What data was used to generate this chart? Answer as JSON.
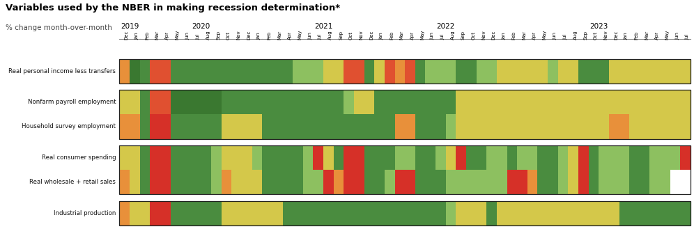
{
  "title": "Variables used by the NBER in making recession determination*",
  "subtitle": "% change month-over-month",
  "row_labels": [
    "Real personal income less transfers",
    "Nonfarm payroll employment",
    "Household survey employment",
    "Real consumer spending",
    "Real wholesale + retail sales",
    "Industrial production"
  ],
  "group_defs": [
    [
      0
    ],
    [
      1,
      2
    ],
    [
      3,
      4
    ],
    [
      5
    ]
  ],
  "year_spans": [
    {
      "year": "2019",
      "start": 0,
      "end": 2
    },
    {
      "year": "2020",
      "start": 2,
      "end": 14
    },
    {
      "year": "2021",
      "start": 14,
      "end": 26
    },
    {
      "year": "2022",
      "start": 26,
      "end": 38
    },
    {
      "year": "2023",
      "start": 38,
      "end": 56
    }
  ],
  "months": [
    "Dec",
    "Jan",
    "Feb",
    "Mar",
    "Apr",
    "May",
    "Jun",
    "Jul",
    "Aug",
    "Sep",
    "Oct",
    "Nov",
    "Dec",
    "Jan",
    "Feb",
    "Mar",
    "Apr",
    "May",
    "Jun",
    "Jul",
    "Aug",
    "Sep",
    "Oct",
    "Nov",
    "Dec",
    "Jan",
    "Feb",
    "Mar",
    "Apr",
    "May",
    "Jun",
    "Jul",
    "Aug",
    "Sep",
    "Oct",
    "Nov",
    "Dec",
    "Jan",
    "Feb",
    "Mar",
    "Apr",
    "May",
    "Jun",
    "Jul",
    "Aug",
    "Sep",
    "Oct",
    "Nov",
    "Dec",
    "Jan",
    "Feb",
    "Mar",
    "Apr",
    "May",
    "Jun",
    "Jul"
  ],
  "n_cols": 56,
  "data": {
    "Real personal income less transfers": [
      -2,
      3,
      2,
      -3,
      -3,
      2,
      2,
      2,
      2,
      2,
      2,
      2,
      2,
      2,
      2,
      2,
      2,
      1,
      1,
      1,
      -1,
      -1,
      -3,
      -3,
      2,
      -1,
      -3,
      -2,
      -3,
      2,
      1,
      1,
      1,
      2,
      2,
      1,
      1,
      -1,
      -1,
      -1,
      -1,
      -1,
      1,
      -1,
      -1,
      2,
      2,
      2,
      -1,
      -1,
      -1,
      -1,
      -1,
      -1,
      -1,
      -1
    ],
    "Nonfarm payroll employment": [
      -1,
      -1,
      2,
      -3,
      -3,
      3,
      3,
      3,
      3,
      3,
      2,
      2,
      2,
      2,
      2,
      2,
      2,
      2,
      2,
      2,
      2,
      2,
      1,
      -1,
      -1,
      2,
      2,
      2,
      2,
      2,
      2,
      2,
      2,
      -1,
      -1,
      -1,
      -1,
      -1,
      -1,
      -1,
      -1,
      -1,
      -1,
      -1,
      -1,
      -1,
      -1,
      -1,
      -1,
      -1,
      -1,
      -1,
      -1,
      -1,
      -1,
      -1
    ],
    "Household survey employment": [
      -2,
      -2,
      2,
      -4,
      -4,
      2,
      2,
      2,
      2,
      2,
      -1,
      -1,
      -1,
      -1,
      2,
      2,
      2,
      2,
      2,
      2,
      2,
      2,
      2,
      2,
      2,
      2,
      2,
      -2,
      -2,
      2,
      2,
      2,
      1,
      -1,
      -1,
      -1,
      -1,
      -1,
      -1,
      -1,
      -1,
      -1,
      -1,
      -1,
      -1,
      -1,
      -1,
      -1,
      -2,
      -2,
      -1,
      -1,
      -1,
      -1,
      -1,
      -1
    ],
    "Real consumer spending": [
      -1,
      -1,
      2,
      -4,
      -4,
      2,
      2,
      2,
      2,
      1,
      -1,
      -1,
      -1,
      1,
      2,
      2,
      2,
      2,
      1,
      -4,
      -1,
      2,
      -4,
      -4,
      2,
      2,
      2,
      1,
      1,
      2,
      2,
      1,
      -1,
      -4,
      2,
      2,
      1,
      1,
      2,
      1,
      1,
      2,
      2,
      1,
      -1,
      -4,
      2,
      1,
      1,
      1,
      2,
      2,
      1,
      1,
      1,
      -4
    ],
    "Real wholesale + retail sales": [
      -2,
      -1,
      2,
      -4,
      -4,
      2,
      2,
      2,
      2,
      1,
      -2,
      -1,
      -1,
      -1,
      2,
      2,
      2,
      2,
      1,
      1,
      -4,
      -2,
      -4,
      -4,
      2,
      2,
      1,
      -4,
      -4,
      2,
      2,
      2,
      1,
      1,
      1,
      1,
      1,
      1,
      -4,
      -4,
      -2,
      2,
      2,
      1,
      -1,
      -4,
      2,
      1,
      1,
      1,
      2,
      2,
      1,
      1,
      0,
      0
    ],
    "Industrial production": [
      -2,
      -1,
      -1,
      -4,
      -4,
      2,
      2,
      2,
      2,
      2,
      -1,
      -1,
      -1,
      -1,
      -1,
      -1,
      2,
      2,
      2,
      2,
      2,
      2,
      2,
      2,
      2,
      2,
      2,
      2,
      2,
      2,
      2,
      2,
      1,
      -1,
      -1,
      -1,
      2,
      -1,
      -1,
      -1,
      -1,
      -1,
      -1,
      -1,
      -1,
      -1,
      -1,
      -1,
      -1,
      2,
      2,
      2,
      2,
      2,
      2,
      2
    ]
  },
  "color_map_vals": {
    "-4": "#d63028",
    "-3": "#e05030",
    "-2": "#e8903a",
    "-1": "#d4c84a",
    "0": "#ffffff",
    "1": "#8dc060",
    "2": "#4a8c3f",
    "3": "#3a7830",
    "4": "#2a6420"
  },
  "background_color": "#ffffff",
  "border_color": "#222222",
  "title_fontsize": 9.5,
  "subtitle_fontsize": 7.5,
  "label_fontsize": 6.2,
  "month_fontsize": 5.0,
  "year_fontsize": 7.5
}
